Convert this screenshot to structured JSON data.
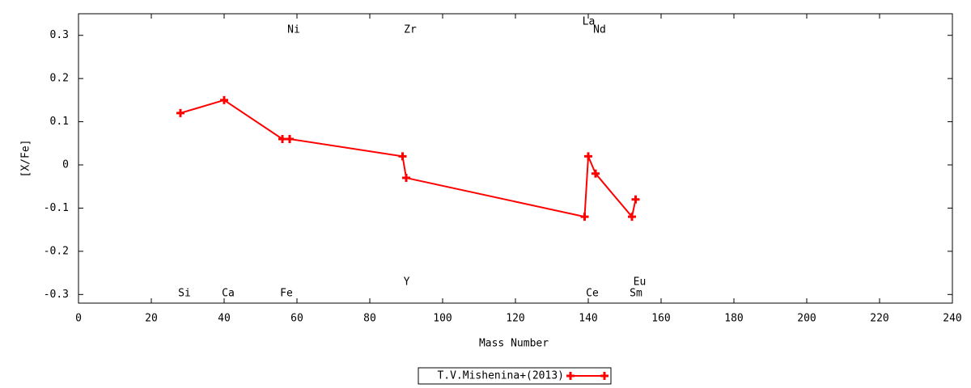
{
  "chart_data": {
    "type": "line",
    "x_label": "Mass Number",
    "y_label": "[X/Fe]",
    "series": [
      {
        "name": "T.V.Mishenina+(2013)",
        "color": "#ff0000",
        "x": [
          28,
          40,
          56,
          58,
          89,
          90,
          139,
          140,
          142,
          152,
          153
        ],
        "values": [
          0.12,
          0.15,
          0.06,
          0.06,
          0.02,
          -0.03,
          -0.12,
          0.02,
          -0.02,
          -0.12,
          -0.08
        ],
        "point_labels": [
          "Si",
          "Ca",
          "Fe",
          "Ni",
          "Y",
          "Zr",
          "La",
          "Ce",
          "Nd",
          "Sm",
          "Eu"
        ]
      }
    ],
    "xlim": [
      0,
      240
    ],
    "xticks": [
      0,
      20,
      40,
      60,
      80,
      100,
      120,
      140,
      160,
      180,
      200,
      220,
      240
    ],
    "ylim": [
      -0.32,
      0.35
    ],
    "yticks": [
      -0.3,
      -0.2,
      -0.1,
      0,
      0.1,
      0.2,
      0.3
    ],
    "grid": false,
    "legend": "bottom"
  }
}
